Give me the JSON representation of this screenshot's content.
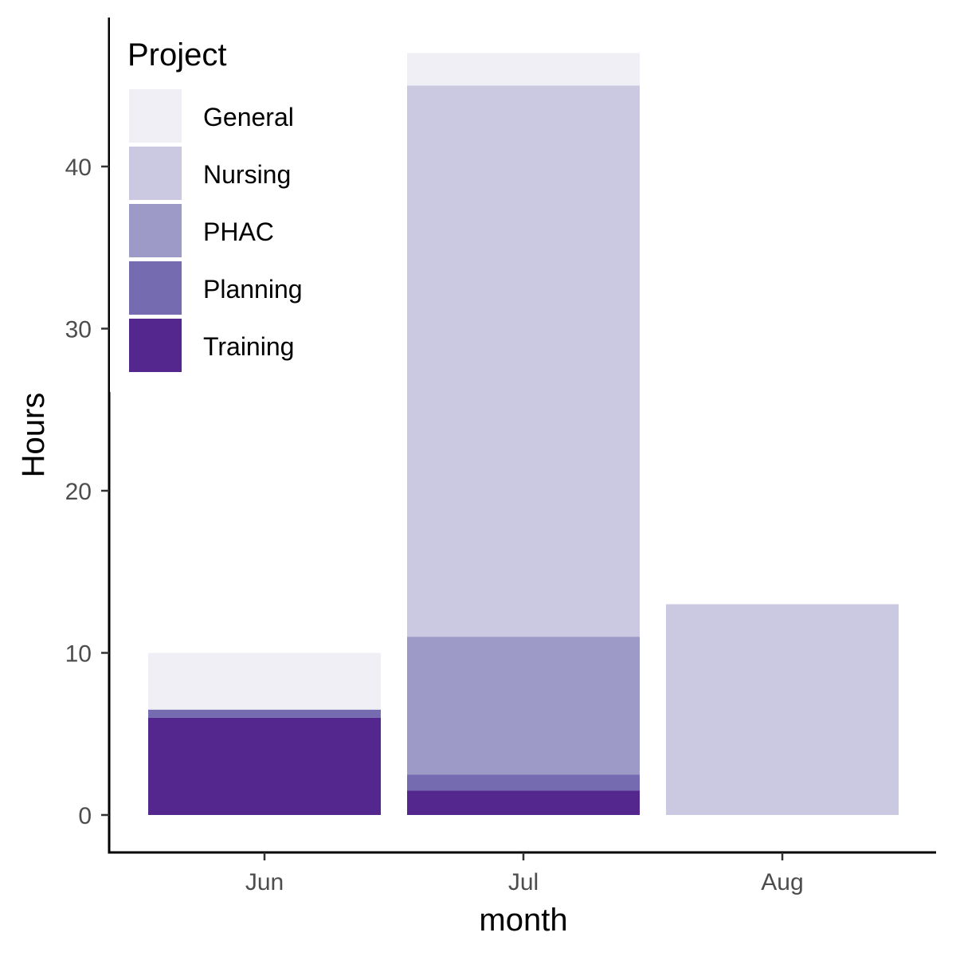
{
  "chart_data": {
    "type": "bar",
    "stacked": true,
    "categories": [
      "Jun",
      "Jul",
      "Aug"
    ],
    "series": [
      {
        "name": "Training",
        "color": "#54278f",
        "values": [
          6,
          1.5,
          0
        ]
      },
      {
        "name": "Planning",
        "color": "#756bb1",
        "values": [
          0.5,
          1,
          0
        ]
      },
      {
        "name": "PHAC",
        "color": "#9e9ac8",
        "values": [
          0,
          8.5,
          0
        ]
      },
      {
        "name": "Nursing",
        "color": "#cbc9e2",
        "values": [
          0,
          34,
          13
        ]
      },
      {
        "name": "General",
        "color": "#f0eff6",
        "values": [
          3.5,
          2,
          0
        ]
      }
    ],
    "xlabel": "month",
    "ylabel": "Hours",
    "ylim": [
      0,
      47
    ],
    "yticks": [
      0,
      10,
      20,
      30,
      40
    ],
    "grid": false,
    "legend": {
      "title": "Project",
      "placement": "top-left",
      "order": [
        "General",
        "Nursing",
        "PHAC",
        "Planning",
        "Training"
      ]
    }
  }
}
